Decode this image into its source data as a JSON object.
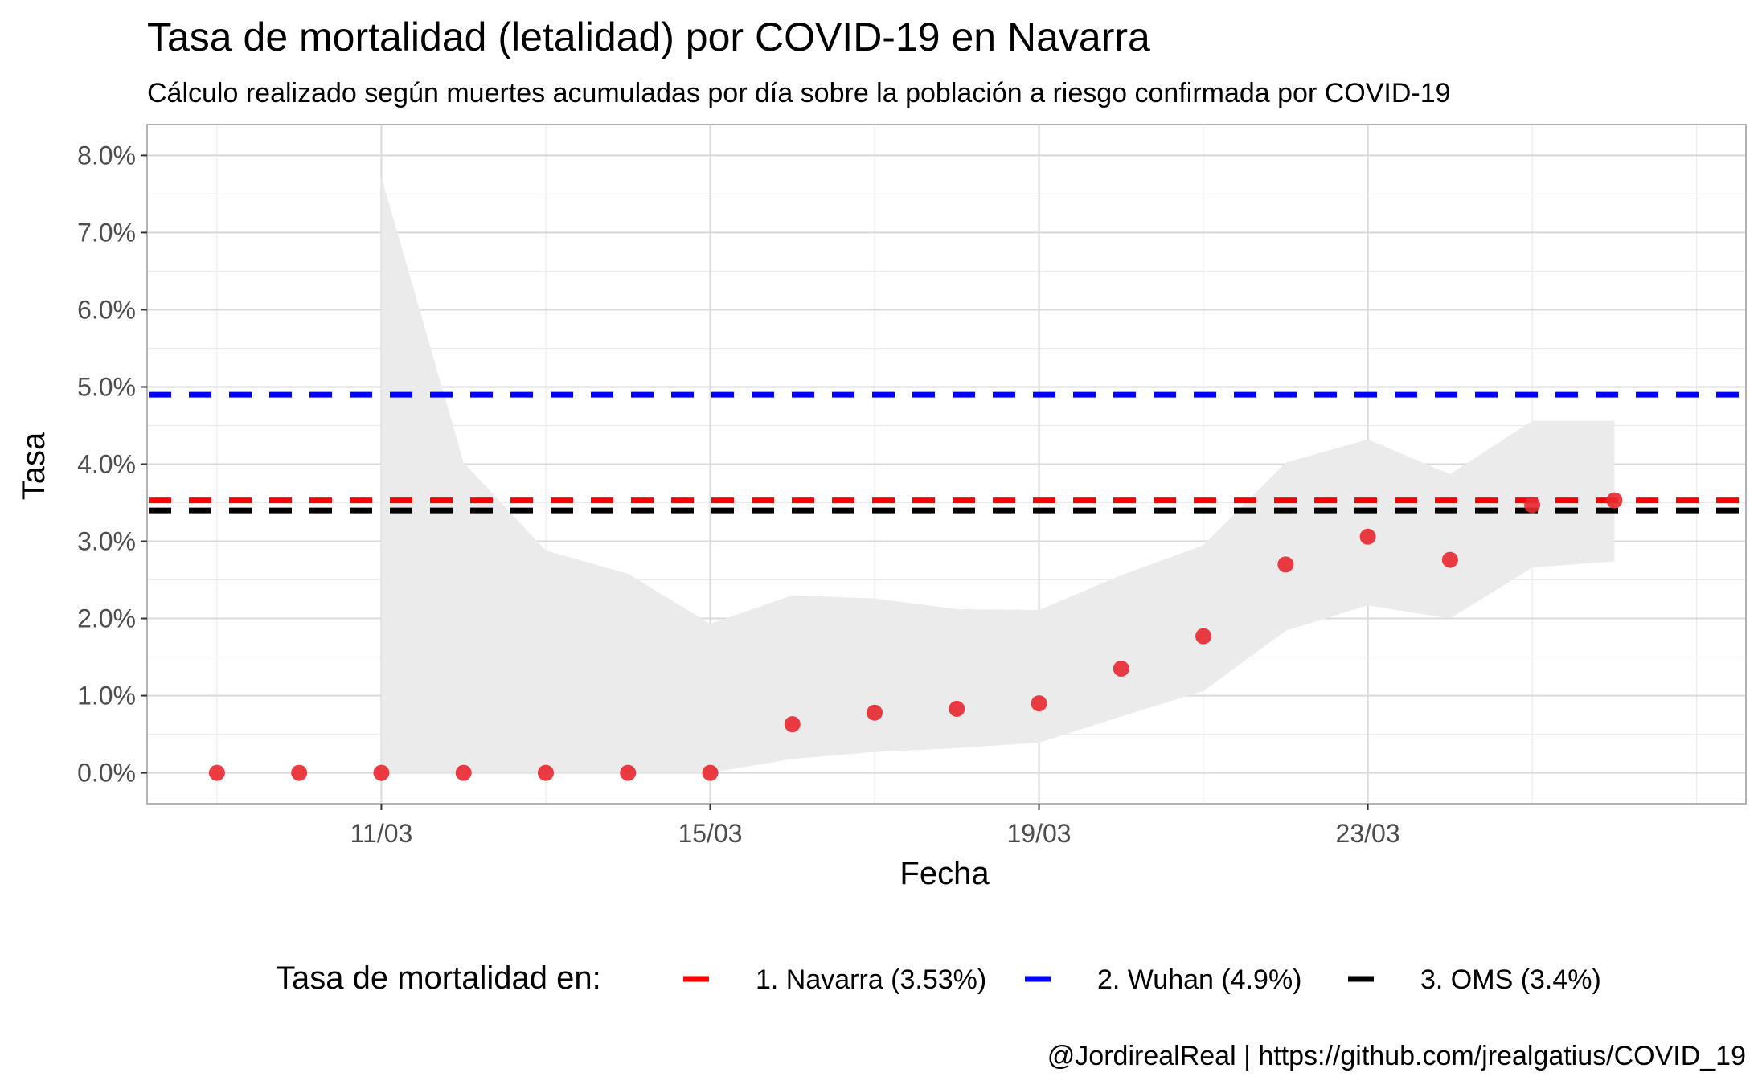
{
  "chart_data": {
    "type": "scatter",
    "title": "Tasa de mortalidad (letalidad) por COVID-19 en Navarra",
    "subtitle": "Cálculo realizado según muertes acumuladas por día sobre la población a riesgo confirmada por COVID-19",
    "xlabel": "Fecha",
    "ylabel": "Tasa",
    "caption": "@JordirealReal | https://github.com/jrealgatius/COVID_19",
    "x_range_day": [
      8.15,
      27.6
    ],
    "ylim": [
      -0.4,
      8.4
    ],
    "x_ticks": [
      {
        "day": 11,
        "label": "11/03"
      },
      {
        "day": 15,
        "label": "15/03"
      },
      {
        "day": 19,
        "label": "19/03"
      },
      {
        "day": 23,
        "label": "23/03"
      }
    ],
    "y_ticks": [
      {
        "value": 0,
        "label": "0.0%"
      },
      {
        "value": 1,
        "label": "1.0%"
      },
      {
        "value": 2,
        "label": "2.0%"
      },
      {
        "value": 3,
        "label": "3.0%"
      },
      {
        "value": 4,
        "label": "4.0%"
      },
      {
        "value": 5,
        "label": "5.0%"
      },
      {
        "value": 6,
        "label": "6.0%"
      },
      {
        "value": 7,
        "label": "7.0%"
      },
      {
        "value": 8,
        "label": "8.0%"
      }
    ],
    "grid": true,
    "points": {
      "color": "#e8272d",
      "dates": [
        "09/03",
        "10/03",
        "11/03",
        "12/03",
        "13/03",
        "14/03",
        "15/03",
        "16/03",
        "17/03",
        "18/03",
        "19/03",
        "20/03",
        "21/03",
        "22/03",
        "23/03",
        "24/03",
        "25/03",
        "26/03"
      ],
      "x_day": [
        9,
        10,
        11,
        12,
        13,
        14,
        15,
        16,
        17,
        18,
        19,
        20,
        21,
        22,
        23,
        24,
        25,
        26
      ],
      "y": [
        0,
        0,
        0,
        0,
        0,
        0,
        0,
        0.63,
        0.78,
        0.83,
        0.9,
        1.35,
        1.77,
        2.7,
        3.06,
        2.76,
        3.47,
        3.53
      ]
    },
    "confidence_band": {
      "color": "#ebebeb",
      "x_day": [
        11,
        12,
        13,
        14,
        15,
        16,
        17,
        18,
        19,
        20,
        21,
        22,
        23,
        24,
        25,
        26
      ],
      "lower": [
        0,
        0,
        0,
        0,
        0,
        0.18,
        0.27,
        0.32,
        0.39,
        0.73,
        1.06,
        1.84,
        2.17,
        2.0,
        2.66,
        2.74
      ],
      "upper": [
        7.72,
        4.02,
        2.88,
        2.58,
        1.93,
        2.3,
        2.26,
        2.12,
        2.11,
        2.56,
        2.95,
        4.02,
        4.32,
        3.87,
        4.56,
        4.56
      ]
    },
    "series": [
      {
        "name": "1. Navarra (3.53%)",
        "value": 3.53,
        "color": "#ff0000"
      },
      {
        "name": "2. Wuhan (4.9%)",
        "value": 4.9,
        "color": "#0000ff"
      },
      {
        "name": "3. OMS (3.4%)",
        "value": 3.4,
        "color": "#000000"
      }
    ],
    "legend": {
      "title": "Tasa de mortalidad en:",
      "position": "bottom"
    }
  }
}
